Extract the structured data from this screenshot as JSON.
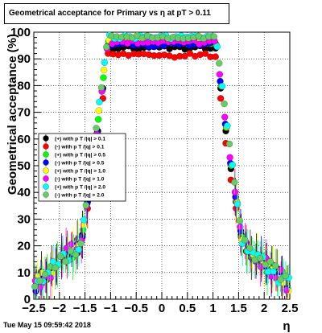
{
  "title": "Geometrical acceptance for Primary vs   η at pT > 0.11",
  "footer_date": "Tue May 15 09:59:42 2018",
  "chart_data": {
    "type": "scatter",
    "xlabel": "η",
    "ylabel": "Geometrical acceptance (%)",
    "xlim": [
      -2.5,
      2.5
    ],
    "ylim": [
      0,
      100
    ],
    "x_ticks": [
      "−2.5",
      "−2",
      "−1.5",
      "−1",
      "−0.5",
      "0",
      "0.5",
      "1",
      "1.5",
      "2",
      "2.5"
    ],
    "y_ticks": [
      "0",
      "10",
      "20",
      "30",
      "40",
      "50",
      "60",
      "70",
      "80",
      "90",
      "100"
    ],
    "grid": true,
    "legend_position": "left-middle",
    "series": [
      {
        "name": "(+) with p T /|q| > 0.1",
        "color": "#000000",
        "plateau": 95,
        "edge": 55,
        "shift": 0.0,
        "seed": 1
      },
      {
        "name": "(-) with p T /|q| > 0.1",
        "color": "#ff0000",
        "plateau": 92,
        "edge": 50,
        "shift": 0.0,
        "seed": 2
      },
      {
        "name": "(+) with p T /|q| > 0.5",
        "color": "#00ff00",
        "plateau": 97,
        "edge": 58,
        "shift": 0.01,
        "seed": 3
      },
      {
        "name": "(-) with p T /|q| > 0.5",
        "color": "#0000ff",
        "plateau": 96,
        "edge": 56,
        "shift": -0.01,
        "seed": 4
      },
      {
        "name": "(+) with p T /|q| > 1.0",
        "color": "#ffff00",
        "plateau": 98,
        "edge": 60,
        "shift": 0.02,
        "seed": 5
      },
      {
        "name": "(-) with p T /|q| > 1.0",
        "color": "#ff00ff",
        "plateau": 97,
        "edge": 57,
        "shift": -0.02,
        "seed": 6
      },
      {
        "name": "(+) with p T /|q| > 2.0",
        "color": "#00ffff",
        "plateau": 99,
        "edge": 62,
        "shift": 0.03,
        "seed": 7
      },
      {
        "name": "(-) with p T /|q| > 2.0",
        "color": "#66cc66",
        "plateau": 99,
        "edge": 61,
        "shift": -0.03,
        "seed": 8
      }
    ]
  }
}
